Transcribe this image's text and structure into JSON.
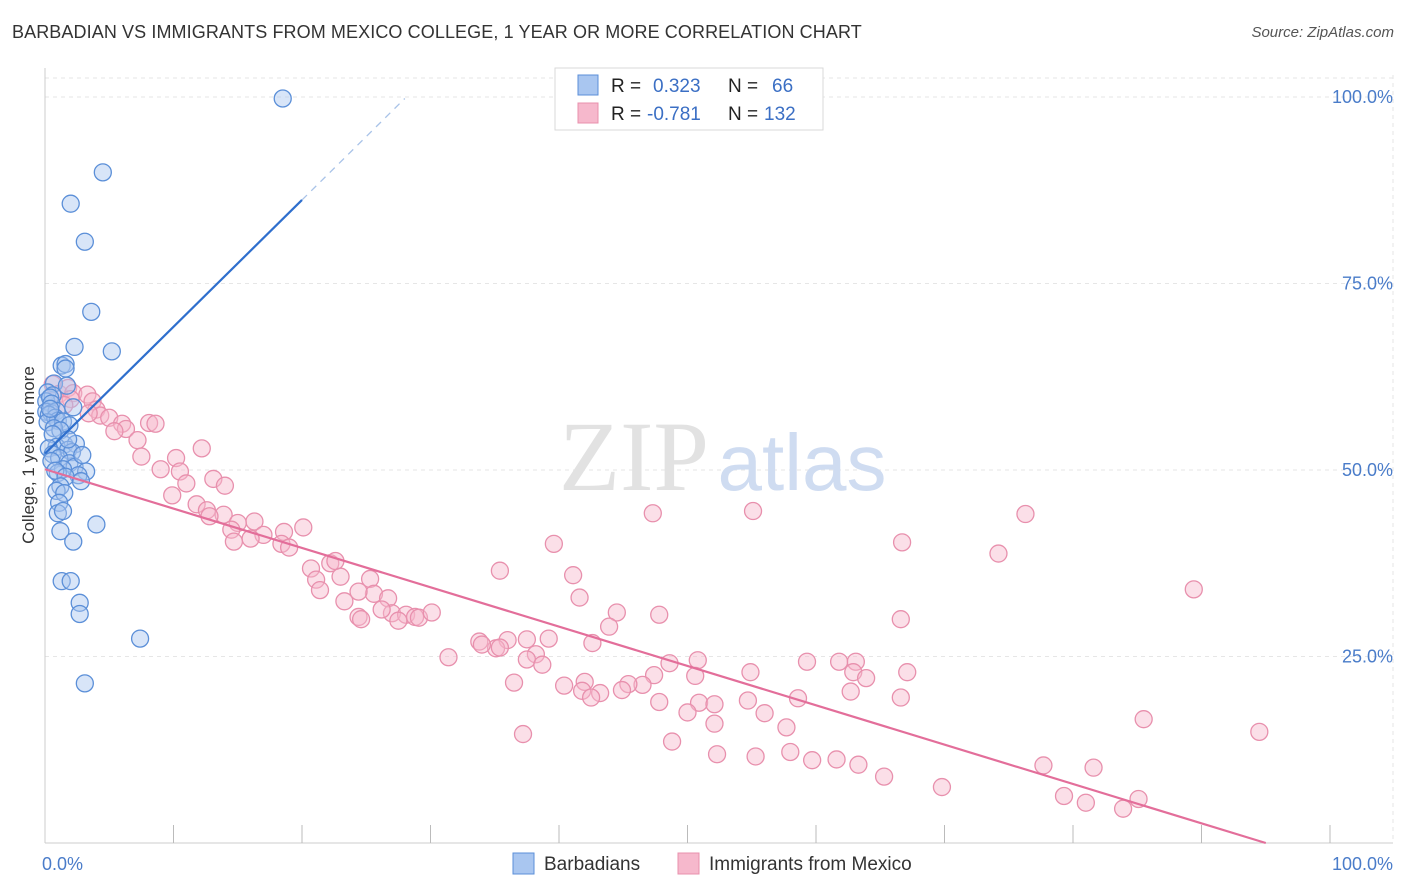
{
  "title": "BARBADIAN VS IMMIGRANTS FROM MEXICO COLLEGE, 1 YEAR OR MORE CORRELATION CHART",
  "source": "Source: ZipAtlas.com",
  "watermark": {
    "zip": "ZIP",
    "atlas": "atlas"
  },
  "colors": {
    "blue_fill": "#a9c6f0",
    "blue_stroke": "#5b8fd8",
    "blue_line": "#2f6fcd",
    "pink_fill": "#f6b8cc",
    "pink_stroke": "#e890ad",
    "pink_line": "#e36e9a",
    "accent_text": "#3b6fc4"
  },
  "chart_data": {
    "type": "scatter",
    "xlabel": "",
    "ylabel": "College, 1 year or more",
    "xlim": [
      0,
      100
    ],
    "ylim": [
      0,
      100
    ],
    "x_tick_labels": [
      {
        "value": 0,
        "label": "0.0%"
      },
      {
        "value": 100,
        "label": "100.0%"
      }
    ],
    "y_tick_labels": [
      {
        "value": 25,
        "label": "25.0%"
      },
      {
        "value": 50,
        "label": "50.0%"
      },
      {
        "value": 75,
        "label": "75.0%"
      },
      {
        "value": 100,
        "label": "100.0%"
      }
    ],
    "legend": {
      "position": "top-center",
      "rows": [
        {
          "r_label": "R =",
          "r_value": "0.323",
          "n_label": "N =",
          "n_value": "66"
        },
        {
          "r_label": "R =",
          "r_value": "-0.781",
          "n_label": "N =",
          "n_value": "132"
        }
      ]
    },
    "series": [
      {
        "name": "Barbadians",
        "trend": {
          "x0": 0,
          "y0": 52.2,
          "x1": 20,
          "y1": 86.2,
          "dash_to_x": 28
        },
        "points": [
          [
            18.5,
            99.8
          ],
          [
            4.5,
            89.9
          ],
          [
            2.0,
            85.7
          ],
          [
            3.1,
            80.6
          ],
          [
            3.6,
            71.2
          ],
          [
            2.3,
            66.5
          ],
          [
            5.2,
            65.9
          ],
          [
            1.3,
            64.0
          ],
          [
            1.6,
            64.2
          ],
          [
            1.6,
            63.6
          ],
          [
            0.7,
            61.6
          ],
          [
            1.7,
            61.3
          ],
          [
            0.2,
            60.4
          ],
          [
            0.6,
            60.0
          ],
          [
            0.1,
            59.2
          ],
          [
            0.4,
            59.7
          ],
          [
            0.5,
            58.9
          ],
          [
            2.2,
            58.4
          ],
          [
            0.1,
            57.8
          ],
          [
            0.5,
            57.6
          ],
          [
            0.9,
            57.9
          ],
          [
            0.3,
            57.4
          ],
          [
            0.8,
            57.0
          ],
          [
            1.0,
            56.6
          ],
          [
            0.2,
            56.4
          ],
          [
            1.4,
            56.5
          ],
          [
            1.9,
            56.0
          ],
          [
            0.7,
            55.6
          ],
          [
            1.2,
            55.3
          ],
          [
            0.6,
            54.8
          ],
          [
            1.5,
            53.4
          ],
          [
            2.4,
            53.5
          ],
          [
            0.9,
            53.1
          ],
          [
            0.3,
            52.9
          ],
          [
            1.8,
            52.7
          ],
          [
            2.1,
            52.4
          ],
          [
            0.6,
            52.1
          ],
          [
            1.1,
            51.6
          ],
          [
            0.5,
            51.2
          ],
          [
            1.9,
            50.9
          ],
          [
            2.3,
            50.4
          ],
          [
            1.4,
            50.1
          ],
          [
            3.2,
            49.8
          ],
          [
            1.0,
            49.6
          ],
          [
            0.8,
            49.9
          ],
          [
            2.6,
            49.3
          ],
          [
            1.6,
            49.1
          ],
          [
            2.8,
            48.5
          ],
          [
            1.2,
            47.8
          ],
          [
            0.9,
            47.2
          ],
          [
            1.5,
            46.9
          ],
          [
            1.1,
            45.6
          ],
          [
            1.0,
            44.2
          ],
          [
            1.4,
            44.5
          ],
          [
            4.0,
            42.7
          ],
          [
            1.2,
            41.8
          ],
          [
            2.2,
            40.4
          ],
          [
            1.3,
            35.1
          ],
          [
            2.0,
            35.1
          ],
          [
            2.7,
            32.2
          ],
          [
            2.7,
            30.7
          ],
          [
            7.4,
            27.4
          ],
          [
            3.1,
            21.4
          ],
          [
            0.4,
            58.2
          ],
          [
            1.8,
            54.1
          ],
          [
            2.9,
            52.0
          ]
        ]
      },
      {
        "name": "Immigrants from Mexico",
        "trend": {
          "x0": 0,
          "y0": 50.1,
          "x1": 95,
          "y1": 0.0
        },
        "points": [
          [
            0.6,
            61.5
          ],
          [
            1.1,
            60.2
          ],
          [
            1.8,
            61.0
          ],
          [
            2.2,
            60.3
          ],
          [
            3.3,
            60.1
          ],
          [
            2.0,
            59.5
          ],
          [
            3.7,
            59.2
          ],
          [
            1.5,
            58.7
          ],
          [
            4.0,
            58.1
          ],
          [
            4.3,
            57.3
          ],
          [
            3.4,
            57.6
          ],
          [
            5.0,
            57.0
          ],
          [
            6.0,
            56.2
          ],
          [
            8.1,
            56.3
          ],
          [
            8.6,
            56.2
          ],
          [
            6.3,
            55.5
          ],
          [
            5.4,
            55.2
          ],
          [
            7.2,
            54.0
          ],
          [
            12.2,
            52.9
          ],
          [
            7.5,
            51.8
          ],
          [
            10.2,
            51.6
          ],
          [
            10.5,
            49.8
          ],
          [
            9.0,
            50.1
          ],
          [
            13.1,
            48.8
          ],
          [
            11.0,
            48.2
          ],
          [
            14.0,
            47.9
          ],
          [
            9.9,
            46.6
          ],
          [
            11.8,
            45.4
          ],
          [
            12.6,
            44.6
          ],
          [
            13.9,
            44.0
          ],
          [
            12.8,
            43.8
          ],
          [
            16.3,
            43.1
          ],
          [
            15.0,
            42.9
          ],
          [
            14.5,
            42.0
          ],
          [
            18.6,
            41.7
          ],
          [
            20.1,
            42.3
          ],
          [
            17.0,
            41.3
          ],
          [
            16.0,
            40.8
          ],
          [
            14.7,
            40.4
          ],
          [
            18.4,
            40.1
          ],
          [
            19.0,
            39.6
          ],
          [
            22.2,
            37.5
          ],
          [
            22.6,
            37.8
          ],
          [
            20.7,
            36.8
          ],
          [
            21.1,
            35.3
          ],
          [
            23.0,
            35.7
          ],
          [
            25.3,
            35.4
          ],
          [
            21.4,
            33.9
          ],
          [
            25.6,
            33.4
          ],
          [
            24.4,
            33.7
          ],
          [
            23.3,
            32.4
          ],
          [
            26.7,
            32.8
          ],
          [
            27.0,
            30.8
          ],
          [
            26.2,
            31.3
          ],
          [
            28.1,
            30.6
          ],
          [
            24.4,
            30.3
          ],
          [
            24.6,
            30.0
          ],
          [
            28.8,
            30.3
          ],
          [
            29.1,
            30.2
          ],
          [
            30.1,
            30.9
          ],
          [
            27.5,
            29.8
          ],
          [
            44.5,
            30.9
          ],
          [
            41.6,
            32.9
          ],
          [
            47.8,
            30.6
          ],
          [
            43.9,
            29.0
          ],
          [
            39.6,
            40.1
          ],
          [
            41.1,
            35.9
          ],
          [
            35.4,
            36.5
          ],
          [
            47.3,
            44.2
          ],
          [
            55.1,
            44.5
          ],
          [
            66.7,
            40.3
          ],
          [
            74.2,
            38.8
          ],
          [
            76.3,
            44.1
          ],
          [
            89.4,
            34.0
          ],
          [
            66.6,
            30.0
          ],
          [
            33.8,
            27.0
          ],
          [
            36.0,
            27.2
          ],
          [
            35.1,
            26.1
          ],
          [
            34.0,
            26.6
          ],
          [
            37.5,
            27.3
          ],
          [
            39.2,
            27.4
          ],
          [
            35.4,
            26.2
          ],
          [
            38.2,
            25.3
          ],
          [
            42.6,
            26.8
          ],
          [
            37.5,
            24.6
          ],
          [
            31.4,
            24.9
          ],
          [
            38.7,
            23.9
          ],
          [
            50.8,
            24.5
          ],
          [
            48.6,
            24.1
          ],
          [
            59.3,
            24.3
          ],
          [
            61.8,
            24.3
          ],
          [
            63.1,
            24.3
          ],
          [
            62.9,
            22.9
          ],
          [
            67.1,
            22.9
          ],
          [
            63.9,
            22.1
          ],
          [
            50.6,
            22.4
          ],
          [
            47.4,
            22.5
          ],
          [
            54.9,
            22.9
          ],
          [
            46.5,
            21.2
          ],
          [
            42.0,
            21.6
          ],
          [
            45.4,
            21.3
          ],
          [
            40.4,
            21.1
          ],
          [
            36.5,
            21.5
          ],
          [
            41.8,
            20.4
          ],
          [
            43.2,
            20.1
          ],
          [
            42.5,
            19.5
          ],
          [
            44.9,
            20.5
          ],
          [
            47.8,
            18.9
          ],
          [
            50.9,
            18.8
          ],
          [
            54.7,
            19.1
          ],
          [
            58.6,
            19.4
          ],
          [
            62.7,
            20.3
          ],
          [
            66.6,
            19.5
          ],
          [
            52.1,
            18.6
          ],
          [
            56.0,
            17.4
          ],
          [
            57.7,
            15.5
          ],
          [
            50.0,
            17.5
          ],
          [
            52.1,
            16.0
          ],
          [
            37.2,
            14.6
          ],
          [
            85.5,
            16.6
          ],
          [
            94.5,
            14.9
          ],
          [
            48.8,
            13.6
          ],
          [
            52.3,
            11.9
          ],
          [
            55.3,
            11.6
          ],
          [
            58.0,
            12.2
          ],
          [
            59.7,
            11.1
          ],
          [
            61.6,
            11.2
          ],
          [
            63.3,
            10.5
          ],
          [
            65.3,
            8.9
          ],
          [
            69.8,
            7.5
          ],
          [
            77.7,
            10.4
          ],
          [
            81.6,
            10.1
          ],
          [
            85.1,
            5.9
          ],
          [
            79.3,
            6.3
          ],
          [
            81.0,
            5.4
          ],
          [
            83.9,
            4.6
          ]
        ]
      }
    ]
  }
}
